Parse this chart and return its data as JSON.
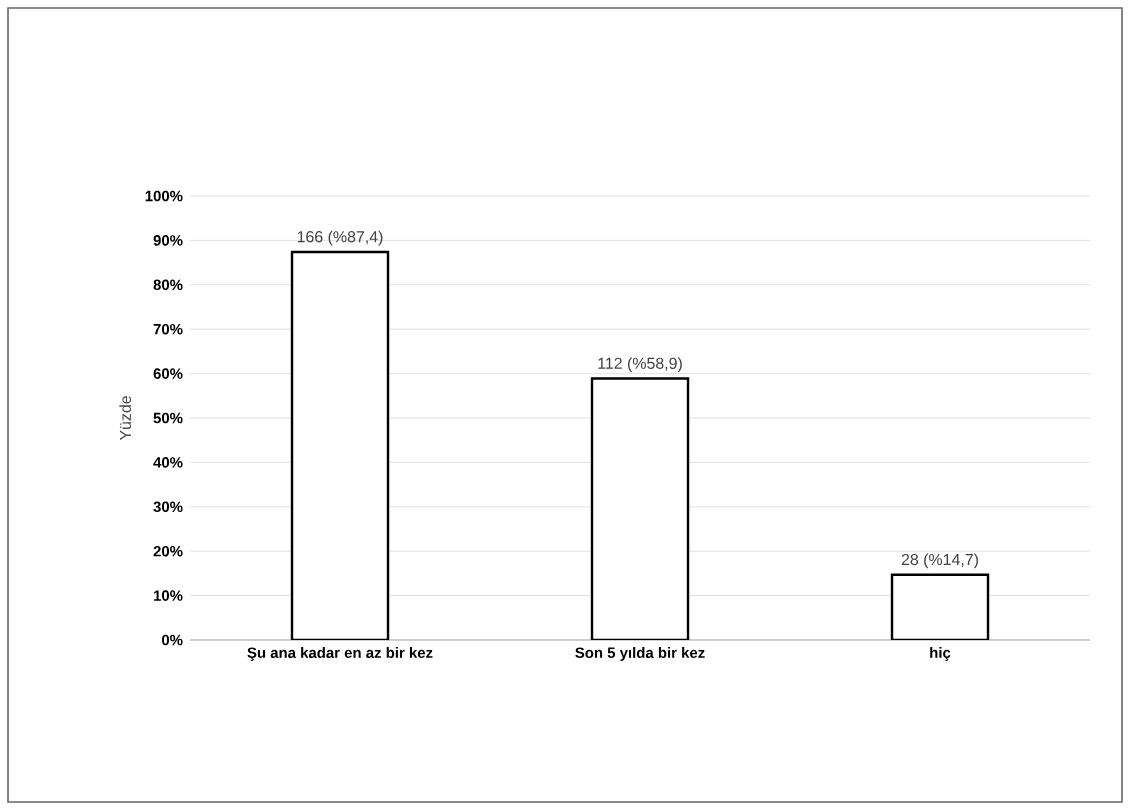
{
  "chart_data": {
    "type": "bar",
    "ylabel": "Yüzde",
    "categories": [
      "Şu ana kadar en az bir kez",
      "Son 5 yılda bir kez",
      "hiç"
    ],
    "values": [
      87.4,
      58.9,
      14.7
    ],
    "color": "#ffffff",
    "value_labels": [
      "166 (%87,4)",
      "112 (%58,9)",
      "28 (%14,7)"
    ],
    "ylim": [
      0,
      100
    ],
    "yticks": [
      {
        "value": 0,
        "label": "0%"
      },
      {
        "value": 10,
        "label": "10%"
      },
      {
        "value": 20,
        "label": "20%"
      },
      {
        "value": 30,
        "label": "30%"
      },
      {
        "value": 40,
        "label": "40%"
      },
      {
        "value": 50,
        "label": "50%"
      },
      {
        "value": 60,
        "label": "60%"
      },
      {
        "value": 70,
        "label": "70%"
      },
      {
        "value": 80,
        "label": "80%"
      },
      {
        "value": 90,
        "label": "90%"
      },
      {
        "value": 100,
        "label": "100%"
      }
    ],
    "grid": "y"
  }
}
